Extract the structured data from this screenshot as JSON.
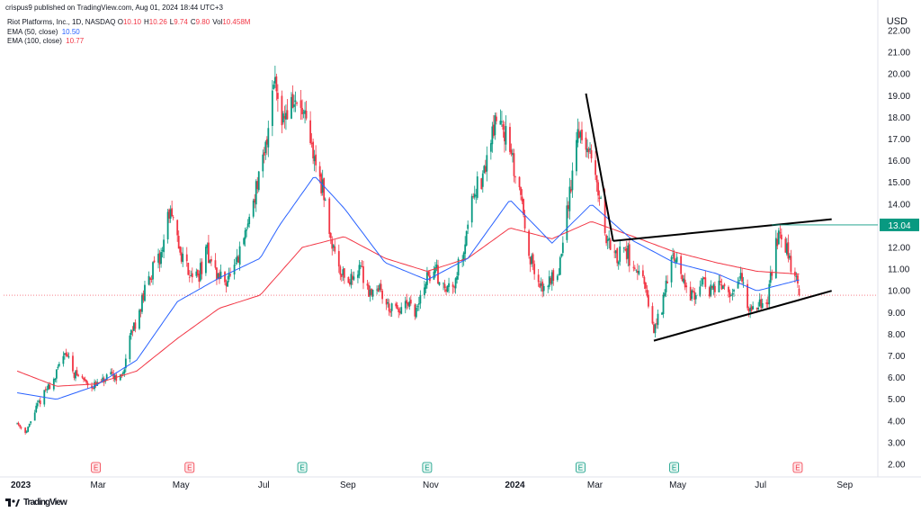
{
  "header": {
    "published": "crispus9 published on TradingView.com, Aug 01, 2024 18:44 UTC+3"
  },
  "legend": {
    "symbol": "Riot Platforms, Inc., 1D, NASDAQ",
    "ohlc": [
      {
        "k": "O",
        "v": "10.10"
      },
      {
        "k": "H",
        "v": "10.26"
      },
      {
        "k": "L",
        "v": "9.74"
      },
      {
        "k": "C",
        "v": "9.80"
      },
      {
        "k": "Vol",
        "v": "10.458M"
      }
    ],
    "ema50": {
      "label": "EMA (50, close)",
      "value": "10.50",
      "color": "#2962ff"
    },
    "ema100": {
      "label": "EMA (100, close)",
      "value": "10.77",
      "color": "#f23645"
    }
  },
  "currency": "USD",
  "footer": {
    "brand": "TradingView",
    "logo_icon": "tradingview-logo-icon"
  },
  "chart_data": {
    "type": "candlestick",
    "title": "Riot Platforms, Inc., 1D, NASDAQ",
    "y_range": [
      2.0,
      22.0
    ],
    "y_ticks": [
      "22.00",
      "21.00",
      "20.00",
      "19.00",
      "18.00",
      "17.00",
      "16.00",
      "15.00",
      "14.00",
      "13.00",
      "12.00",
      "11.00",
      "10.00",
      "9.00",
      "8.00",
      "7.00",
      "6.00",
      "5.00",
      "4.00",
      "3.00",
      "2.00"
    ],
    "x_ticks": [
      "2023",
      "Mar",
      "May",
      "Jul",
      "Sep",
      "Nov",
      "2024",
      "Mar",
      "May",
      "Jul",
      "Sep"
    ],
    "last_price": "13.04",
    "last_price_color": "#089981",
    "price_line_value": 9.8,
    "up_color": "#089981",
    "down_color": "#f23645",
    "close_path": [
      [
        "2023-01-03",
        3.9
      ],
      [
        "2023-01-10",
        3.5
      ],
      [
        "2023-01-17",
        4.6
      ],
      [
        "2023-01-24",
        5.4
      ],
      [
        "2023-01-31",
        6.0
      ],
      [
        "2023-02-07",
        7.3
      ],
      [
        "2023-02-14",
        6.2
      ],
      [
        "2023-02-21",
        5.9
      ],
      [
        "2023-02-28",
        5.6
      ],
      [
        "2023-03-07",
        5.8
      ],
      [
        "2023-03-14",
        6.1
      ],
      [
        "2023-03-21",
        6.0
      ],
      [
        "2023-03-28",
        8.0
      ],
      [
        "2023-04-04",
        9.3
      ],
      [
        "2023-04-11",
        10.8
      ],
      [
        "2023-04-18",
        11.4
      ],
      [
        "2023-04-25",
        13.7
      ],
      [
        "2023-05-02",
        12.0
      ],
      [
        "2023-05-09",
        11.0
      ],
      [
        "2023-05-16",
        10.6
      ],
      [
        "2023-05-23",
        11.8
      ],
      [
        "2023-05-30",
        10.7
      ],
      [
        "2023-06-06",
        10.5
      ],
      [
        "2023-06-13",
        11.0
      ],
      [
        "2023-06-20",
        12.6
      ],
      [
        "2023-06-27",
        14.5
      ],
      [
        "2023-07-04",
        16.0
      ],
      [
        "2023-07-11",
        20.0
      ],
      [
        "2023-07-18",
        18.0
      ],
      [
        "2023-07-25",
        18.7
      ],
      [
        "2023-08-01",
        18.2
      ],
      [
        "2023-08-08",
        16.5
      ],
      [
        "2023-08-15",
        15.0
      ],
      [
        "2023-08-22",
        12.5
      ],
      [
        "2023-08-29",
        11.0
      ],
      [
        "2023-09-05",
        10.4
      ],
      [
        "2023-09-12",
        11.2
      ],
      [
        "2023-09-19",
        10.0
      ],
      [
        "2023-09-26",
        10.2
      ],
      [
        "2023-10-03",
        9.3
      ],
      [
        "2023-10-10",
        9.0
      ],
      [
        "2023-10-17",
        9.3
      ],
      [
        "2023-10-24",
        9.0
      ],
      [
        "2023-10-31",
        10.5
      ],
      [
        "2023-11-07",
        11.0
      ],
      [
        "2023-11-14",
        10.0
      ],
      [
        "2023-11-21",
        10.5
      ],
      [
        "2023-11-28",
        12.0
      ],
      [
        "2023-12-05",
        14.7
      ],
      [
        "2023-12-12",
        15.0
      ],
      [
        "2023-12-19",
        17.5
      ],
      [
        "2023-12-26",
        18.0
      ],
      [
        "2024-01-02",
        16.0
      ],
      [
        "2024-01-09",
        14.5
      ],
      [
        "2024-01-16",
        11.5
      ],
      [
        "2024-01-23",
        10.0
      ],
      [
        "2024-01-30",
        10.5
      ],
      [
        "2024-02-06",
        11.0
      ],
      [
        "2024-02-13",
        14.0
      ],
      [
        "2024-02-20",
        17.5
      ],
      [
        "2024-02-27",
        16.5
      ],
      [
        "2024-03-05",
        15.0
      ],
      [
        "2024-03-12",
        12.5
      ],
      [
        "2024-03-19",
        11.5
      ],
      [
        "2024-03-26",
        12.0
      ],
      [
        "2024-04-02",
        11.0
      ],
      [
        "2024-04-09",
        10.2
      ],
      [
        "2024-04-16",
        8.1
      ],
      [
        "2024-04-23",
        9.5
      ],
      [
        "2024-04-30",
        12.0
      ],
      [
        "2024-05-07",
        10.5
      ],
      [
        "2024-05-14",
        9.7
      ],
      [
        "2024-05-21",
        10.5
      ],
      [
        "2024-05-28",
        10.0
      ],
      [
        "2024-06-04",
        10.3
      ],
      [
        "2024-06-11",
        9.6
      ],
      [
        "2024-06-18",
        10.8
      ],
      [
        "2024-06-25",
        9.3
      ],
      [
        "2024-07-02",
        9.4
      ],
      [
        "2024-07-09",
        9.7
      ],
      [
        "2024-07-16",
        12.5
      ],
      [
        "2024-07-23",
        11.8
      ],
      [
        "2024-07-30",
        10.5
      ],
      [
        "2024-08-01",
        9.8
      ]
    ],
    "ema50_path": [
      [
        "2023-01-03",
        5.3
      ],
      [
        "2023-02-01",
        5.0
      ],
      [
        "2023-03-01",
        5.6
      ],
      [
        "2023-04-01",
        6.8
      ],
      [
        "2023-05-01",
        9.5
      ],
      [
        "2023-06-01",
        10.6
      ],
      [
        "2023-07-01",
        11.5
      ],
      [
        "2023-07-15",
        13.0
      ],
      [
        "2023-08-10",
        15.3
      ],
      [
        "2023-09-01",
        13.8
      ],
      [
        "2023-10-01",
        11.3
      ],
      [
        "2023-11-01",
        10.5
      ],
      [
        "2023-12-01",
        11.5
      ],
      [
        "2024-01-01",
        14.2
      ],
      [
        "2024-02-01",
        12.2
      ],
      [
        "2024-03-01",
        14.0
      ],
      [
        "2024-04-01",
        12.3
      ],
      [
        "2024-05-01",
        11.3
      ],
      [
        "2024-06-01",
        10.8
      ],
      [
        "2024-07-01",
        10.0
      ],
      [
        "2024-08-01",
        10.5
      ]
    ],
    "ema100_path": [
      [
        "2023-01-03",
        6.3
      ],
      [
        "2023-02-01",
        5.6
      ],
      [
        "2023-03-01",
        5.7
      ],
      [
        "2023-04-01",
        6.3
      ],
      [
        "2023-05-01",
        7.8
      ],
      [
        "2023-06-01",
        9.2
      ],
      [
        "2023-07-01",
        9.8
      ],
      [
        "2023-08-01",
        12.0
      ],
      [
        "2023-09-01",
        12.5
      ],
      [
        "2023-10-01",
        11.5
      ],
      [
        "2023-11-01",
        10.9
      ],
      [
        "2023-12-01",
        11.5
      ],
      [
        "2024-01-01",
        12.9
      ],
      [
        "2024-02-01",
        12.4
      ],
      [
        "2024-03-01",
        13.2
      ],
      [
        "2024-04-01",
        12.5
      ],
      [
        "2024-05-01",
        11.8
      ],
      [
        "2024-06-01",
        11.3
      ],
      [
        "2024-07-01",
        10.9
      ],
      [
        "2024-08-01",
        10.77
      ]
    ],
    "annotations": {
      "trend_lines": [
        {
          "from": [
            "2024-02-26",
            19.1
          ],
          "to": [
            "2024-03-17",
            12.3
          ]
        },
        {
          "from": [
            "2024-03-17",
            12.3
          ],
          "to": [
            "2024-08-25",
            13.3
          ]
        },
        {
          "from": [
            "2024-04-16",
            7.7
          ],
          "to": [
            "2024-08-25",
            10.0
          ]
        }
      ],
      "horizontal_rays": [
        {
          "from": [
            "2024-07-12",
            13.04
          ]
        }
      ],
      "earnings_markers": [
        {
          "date": "2023-03-02",
          "label": "E",
          "kind": "earnings"
        },
        {
          "date": "2023-05-10",
          "label": "E",
          "kind": "earnings"
        },
        {
          "date": "2023-08-01",
          "label": "E",
          "kind": "estimate"
        },
        {
          "date": "2023-11-01",
          "label": "E",
          "kind": "estimate"
        },
        {
          "date": "2024-02-22",
          "label": "E",
          "kind": "estimate"
        },
        {
          "date": "2024-05-01",
          "label": "E",
          "kind": "estimate"
        },
        {
          "date": "2024-07-31",
          "label": "E",
          "kind": "earnings"
        }
      ]
    }
  }
}
